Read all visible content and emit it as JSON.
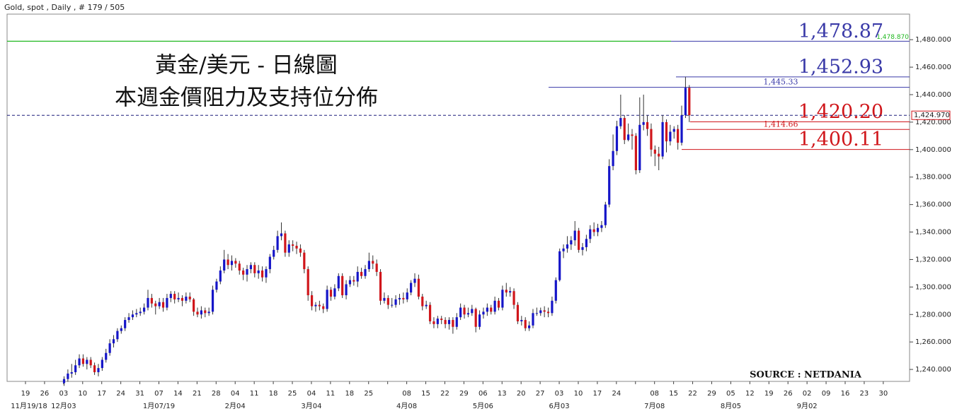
{
  "header": "Gold, spot , Daily , # 179 / 505",
  "chart_data": {
    "type": "candlestick",
    "title": "黃金/美元 - 日線圖",
    "subtitle": "本週金價阻力及支持位分佈",
    "source": "SOURCE : NETDANIA",
    "up_color": "#1515c8",
    "down_color": "#d0161b",
    "ylim": [
      1231.3,
      1498.6
    ],
    "yticks": [
      {
        "value": 1240,
        "label": "1,240.000"
      },
      {
        "value": 1260,
        "label": "1,260.000"
      },
      {
        "value": 1280,
        "label": "1,280.000"
      },
      {
        "value": 1300,
        "label": "1,300.000"
      },
      {
        "value": 1320,
        "label": "1,320.000"
      },
      {
        "value": 1340,
        "label": "1,340.000"
      },
      {
        "value": 1360,
        "label": "1,360.000"
      },
      {
        "value": 1380,
        "label": "1,380.000"
      },
      {
        "value": 1400,
        "label": "1,400.000"
      },
      {
        "value": 1420,
        "label": "1,420.000"
      },
      {
        "value": 1440,
        "label": "1,440.000"
      },
      {
        "value": 1460,
        "label": "1,460.000"
      },
      {
        "value": 1480,
        "label": "1,480.000"
      }
    ],
    "xticks": [
      "19",
      "26",
      "03",
      "10",
      "17",
      "24",
      "31",
      "07",
      "14",
      "21",
      "28",
      "04",
      "11",
      "18",
      "25",
      "04",
      "11",
      "18",
      "25",
      null,
      "08",
      "15",
      "22",
      "29",
      "06",
      "13",
      "20",
      "27",
      "03",
      "10",
      "17",
      "24",
      null,
      "08",
      "15",
      "22",
      "29",
      "05",
      "12",
      "19",
      "26",
      "02",
      "09",
      "16",
      "23",
      "30"
    ],
    "xticks_month": [
      "11月19/18",
      "12月03",
      "1月07/19",
      "2月04",
      "3月04",
      "4月08",
      "5月06",
      "6月03",
      "7月08",
      "8月05",
      "9月02"
    ],
    "candles": [
      [
        1230,
        1235,
        1228,
        1233
      ],
      [
        1233,
        1240,
        1231,
        1237
      ],
      [
        1237,
        1244,
        1234,
        1238
      ],
      [
        1238,
        1247,
        1236,
        1243
      ],
      [
        1243,
        1251,
        1241,
        1248
      ],
      [
        1248,
        1251,
        1242,
        1244
      ],
      [
        1244,
        1249,
        1240,
        1247
      ],
      [
        1247,
        1249,
        1241,
        1243
      ],
      [
        1243,
        1245,
        1236,
        1238
      ],
      [
        1238,
        1244,
        1235,
        1241
      ],
      [
        1241,
        1249,
        1239,
        1247
      ],
      [
        1247,
        1255,
        1245,
        1252
      ],
      [
        1252,
        1262,
        1250,
        1259
      ],
      [
        1259,
        1265,
        1256,
        1262
      ],
      [
        1262,
        1270,
        1260,
        1268
      ],
      [
        1268,
        1272,
        1266,
        1270
      ],
      [
        1270,
        1278,
        1268,
        1276
      ],
      [
        1276,
        1281,
        1274,
        1278
      ],
      [
        1278,
        1283,
        1276,
        1280
      ],
      [
        1280,
        1284,
        1278,
        1281
      ],
      [
        1281,
        1285,
        1279,
        1282
      ],
      [
        1282,
        1288,
        1280,
        1285
      ],
      [
        1285,
        1298,
        1283,
        1292
      ],
      [
        1292,
        1295,
        1285,
        1288
      ],
      [
        1288,
        1290,
        1280,
        1286
      ],
      [
        1286,
        1292,
        1284,
        1289
      ],
      [
        1289,
        1292,
        1282,
        1285
      ],
      [
        1285,
        1295,
        1283,
        1292
      ],
      [
        1292,
        1297,
        1289,
        1295
      ],
      [
        1295,
        1297,
        1288,
        1291
      ],
      [
        1291,
        1296,
        1289,
        1292
      ],
      [
        1292,
        1294,
        1286,
        1290
      ],
      [
        1290,
        1296,
        1288,
        1293
      ],
      [
        1293,
        1296,
        1289,
        1291
      ],
      [
        1291,
        1292,
        1279,
        1282
      ],
      [
        1282,
        1285,
        1278,
        1280
      ],
      [
        1280,
        1286,
        1277,
        1283
      ],
      [
        1283,
        1285,
        1278,
        1281
      ],
      [
        1281,
        1285,
        1279,
        1282
      ],
      [
        1282,
        1301,
        1280,
        1298
      ],
      [
        1298,
        1306,
        1296,
        1304
      ],
      [
        1304,
        1315,
        1302,
        1312
      ],
      [
        1312,
        1327,
        1310,
        1320
      ],
      [
        1320,
        1324,
        1313,
        1316
      ],
      [
        1316,
        1323,
        1312,
        1319
      ],
      [
        1319,
        1321,
        1314,
        1317
      ],
      [
        1317,
        1319,
        1309,
        1312
      ],
      [
        1312,
        1314,
        1305,
        1309
      ],
      [
        1309,
        1316,
        1304,
        1313
      ],
      [
        1313,
        1318,
        1310,
        1316
      ],
      [
        1316,
        1318,
        1307,
        1310
      ],
      [
        1310,
        1316,
        1306,
        1312
      ],
      [
        1312,
        1315,
        1304,
        1307
      ],
      [
        1307,
        1315,
        1303,
        1313
      ],
      [
        1313,
        1324,
        1310,
        1322
      ],
      [
        1322,
        1330,
        1320,
        1327
      ],
      [
        1327,
        1341,
        1325,
        1337
      ],
      [
        1337,
        1347,
        1334,
        1339
      ],
      [
        1339,
        1341,
        1322,
        1325
      ],
      [
        1325,
        1334,
        1322,
        1331
      ],
      [
        1331,
        1334,
        1326,
        1330
      ],
      [
        1330,
        1333,
        1324,
        1328
      ],
      [
        1328,
        1331,
        1322,
        1325
      ],
      [
        1325,
        1327,
        1310,
        1313
      ],
      [
        1313,
        1315,
        1290,
        1294
      ],
      [
        1294,
        1297,
        1283,
        1286
      ],
      [
        1286,
        1289,
        1282,
        1287
      ],
      [
        1287,
        1290,
        1283,
        1286
      ],
      [
        1286,
        1288,
        1281,
        1284
      ],
      [
        1284,
        1301,
        1282,
        1298
      ],
      [
        1298,
        1300,
        1290,
        1293
      ],
      [
        1293,
        1302,
        1291,
        1299
      ],
      [
        1299,
        1310,
        1297,
        1308
      ],
      [
        1308,
        1310,
        1292,
        1294
      ],
      [
        1294,
        1305,
        1291,
        1302
      ],
      [
        1302,
        1308,
        1300,
        1305
      ],
      [
        1305,
        1308,
        1301,
        1304
      ],
      [
        1304,
        1315,
        1300,
        1311
      ],
      [
        1311,
        1314,
        1306,
        1308
      ],
      [
        1308,
        1316,
        1306,
        1313
      ],
      [
        1313,
        1325,
        1311,
        1319
      ],
      [
        1319,
        1323,
        1313,
        1317
      ],
      [
        1317,
        1320,
        1308,
        1311
      ],
      [
        1311,
        1313,
        1287,
        1290
      ],
      [
        1290,
        1296,
        1288,
        1292
      ],
      [
        1292,
        1294,
        1284,
        1287
      ],
      [
        1287,
        1292,
        1285,
        1287
      ],
      [
        1287,
        1294,
        1285,
        1291
      ],
      [
        1291,
        1295,
        1287,
        1292
      ],
      [
        1292,
        1296,
        1288,
        1291
      ],
      [
        1291,
        1299,
        1289,
        1296
      ],
      [
        1296,
        1305,
        1294,
        1303
      ],
      [
        1303,
        1310,
        1300,
        1306
      ],
      [
        1306,
        1309,
        1291,
        1293
      ],
      [
        1293,
        1295,
        1283,
        1286
      ],
      [
        1286,
        1290,
        1284,
        1287
      ],
      [
        1287,
        1289,
        1273,
        1275
      ],
      [
        1275,
        1278,
        1270,
        1273
      ],
      [
        1273,
        1279,
        1270,
        1277
      ],
      [
        1277,
        1279,
        1273,
        1276
      ],
      [
        1276,
        1278,
        1270,
        1273
      ],
      [
        1273,
        1278,
        1269,
        1276
      ],
      [
        1276,
        1278,
        1266,
        1271
      ],
      [
        1271,
        1281,
        1269,
        1278
      ],
      [
        1278,
        1288,
        1276,
        1285
      ],
      [
        1285,
        1287,
        1277,
        1280
      ],
      [
        1280,
        1285,
        1278,
        1281
      ],
      [
        1281,
        1287,
        1279,
        1284
      ],
      [
        1284,
        1285,
        1267,
        1271
      ],
      [
        1271,
        1283,
        1269,
        1280
      ],
      [
        1280,
        1285,
        1277,
        1282
      ],
      [
        1282,
        1288,
        1279,
        1285
      ],
      [
        1285,
        1287,
        1280,
        1282
      ],
      [
        1282,
        1293,
        1280,
        1290
      ],
      [
        1290,
        1292,
        1283,
        1285
      ],
      [
        1285,
        1301,
        1283,
        1298
      ],
      [
        1298,
        1303,
        1293,
        1296
      ],
      [
        1296,
        1300,
        1293,
        1297
      ],
      [
        1297,
        1299,
        1284,
        1287
      ],
      [
        1287,
        1289,
        1273,
        1275
      ],
      [
        1275,
        1279,
        1272,
        1276
      ],
      [
        1276,
        1278,
        1268,
        1270
      ],
      [
        1270,
        1275,
        1268,
        1272
      ],
      [
        1272,
        1284,
        1270,
        1281
      ],
      [
        1281,
        1285,
        1279,
        1281
      ],
      [
        1281,
        1285,
        1279,
        1283
      ],
      [
        1283,
        1286,
        1278,
        1282
      ],
      [
        1282,
        1285,
        1278,
        1281
      ],
      [
        1281,
        1293,
        1279,
        1290
      ],
      [
        1290,
        1307,
        1288,
        1305
      ],
      [
        1305,
        1328,
        1304,
        1326
      ],
      [
        1326,
        1331,
        1321,
        1328
      ],
      [
        1328,
        1337,
        1325,
        1331
      ],
      [
        1331,
        1337,
        1327,
        1334
      ],
      [
        1334,
        1348,
        1330,
        1341
      ],
      [
        1341,
        1343,
        1325,
        1327
      ],
      [
        1327,
        1332,
        1323,
        1329
      ],
      [
        1329,
        1338,
        1326,
        1335
      ],
      [
        1335,
        1345,
        1332,
        1342
      ],
      [
        1342,
        1347,
        1337,
        1340
      ],
      [
        1340,
        1346,
        1337,
        1343
      ],
      [
        1343,
        1348,
        1340,
        1345
      ],
      [
        1345,
        1362,
        1343,
        1360
      ],
      [
        1360,
        1393,
        1358,
        1388
      ],
      [
        1388,
        1411,
        1385,
        1399
      ],
      [
        1399,
        1421,
        1396,
        1417
      ],
      [
        1417,
        1440,
        1415,
        1423
      ],
      [
        1423,
        1425,
        1404,
        1407
      ],
      [
        1407,
        1419,
        1406,
        1411
      ],
      [
        1411,
        1415,
        1400,
        1410
      ],
      [
        1410,
        1412,
        1382,
        1385
      ],
      [
        1385,
        1438,
        1383,
        1418
      ],
      [
        1418,
        1440,
        1414,
        1420
      ],
      [
        1420,
        1425,
        1410,
        1415
      ],
      [
        1415,
        1419,
        1395,
        1400
      ],
      [
        1400,
        1403,
        1388,
        1397
      ],
      [
        1397,
        1402,
        1385,
        1395
      ],
      [
        1395,
        1425,
        1393,
        1420
      ],
      [
        1420,
        1422,
        1398,
        1406
      ],
      [
        1406,
        1418,
        1403,
        1413
      ],
      [
        1413,
        1417,
        1408,
        1415
      ],
      [
        1415,
        1418,
        1400,
        1405
      ],
      [
        1405,
        1432,
        1403,
        1425
      ],
      [
        1425,
        1453,
        1423,
        1445
      ],
      [
        1445,
        1447,
        1420,
        1424.97
      ]
    ],
    "price_line": {
      "value": 1424.97,
      "label": "1,424.970"
    },
    "levels": [
      {
        "value": 1478.87,
        "label": "1,478.87",
        "axis_label": "1,478.870",
        "color": "#3a3aa8"
      },
      {
        "value": 1452.93,
        "label": "1,452.93",
        "color": "#3a3aa8"
      },
      {
        "value": 1445.33,
        "label": "1,445.33",
        "color": "#3a3aa8"
      },
      {
        "value": 1420.2,
        "label": "1,420.20",
        "color": "#d0161b"
      },
      {
        "value": 1414.66,
        "label": "1,414.66",
        "color": "#d0161b"
      },
      {
        "value": 1400.11,
        "label": "1,400.11",
        "color": "#d0161b"
      }
    ]
  }
}
